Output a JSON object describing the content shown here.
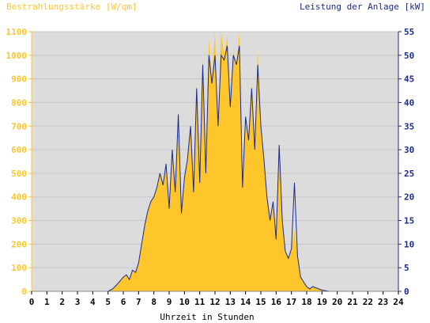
{
  "chart_data": {
    "type": "area",
    "left_title": "Bestrahlungsstärke [W/qm]",
    "right_title": "Leistung der Anlage [kW]",
    "xlabel": "Uhrzeit in Stunden",
    "xlim": [
      0,
      24
    ],
    "xticks": [
      "0",
      "1",
      "2",
      "3",
      "4",
      "5",
      "6",
      "7",
      "8",
      "9",
      "10",
      "11",
      "12",
      "13",
      "14",
      "15",
      "16",
      "17",
      "18",
      "19",
      "20",
      "21",
      "22",
      "23",
      "24"
    ],
    "ylim_left": [
      0,
      1100
    ],
    "yticks_left": [
      "0",
      "100",
      "200",
      "300",
      "400",
      "500",
      "600",
      "700",
      "800",
      "900",
      "1000",
      "1100"
    ],
    "ylim_right": [
      0,
      55
    ],
    "yticks_right": [
      "0",
      "5",
      "10",
      "15",
      "20",
      "25",
      "30",
      "35",
      "40",
      "45",
      "50",
      "55"
    ],
    "colors": {
      "irradiance": "#ffc62c",
      "power": "#1c2a8c",
      "plot_background": "#dcdcdc",
      "left_axis_text": "#ffc62c",
      "right_axis_text": "#1c2a8c"
    },
    "series": [
      {
        "name": "Bestrahlungsstärke [W/qm]",
        "axis": "left",
        "x": [
          0,
          5,
          5.3,
          5.6,
          6,
          6.2,
          6.4,
          6.6,
          6.8,
          7,
          7.2,
          7.4,
          7.6,
          7.8,
          8,
          8.2,
          8.4,
          8.6,
          8.8,
          9,
          9.2,
          9.4,
          9.6,
          9.8,
          10,
          10.2,
          10.4,
          10.6,
          10.8,
          11,
          11.2,
          11.4,
          11.6,
          11.8,
          12,
          12.2,
          12.4,
          12.6,
          12.8,
          13,
          13.2,
          13.4,
          13.6,
          13.8,
          14,
          14.2,
          14.4,
          14.6,
          14.8,
          15,
          15.2,
          15.4,
          15.6,
          15.8,
          16,
          16.2,
          16.4,
          16.6,
          16.8,
          17,
          17.2,
          17.4,
          17.6,
          17.8,
          18,
          18.2,
          18.4,
          18.6,
          18.8,
          19,
          19.5,
          20,
          20.2,
          20.5,
          24
        ],
        "y": [
          0,
          0,
          10,
          30,
          60,
          70,
          50,
          90,
          80,
          120,
          200,
          280,
          340,
          380,
          400,
          440,
          500,
          450,
          540,
          350,
          600,
          420,
          700,
          330,
          480,
          560,
          700,
          420,
          880,
          460,
          980,
          500,
          1070,
          900,
          1100,
          700,
          1100,
          1000,
          1080,
          780,
          1020,
          960,
          1100,
          450,
          740,
          650,
          880,
          600,
          1020,
          700,
          560,
          400,
          300,
          380,
          220,
          620,
          300,
          170,
          140,
          180,
          260,
          150,
          60,
          40,
          20,
          10,
          20,
          15,
          10,
          5,
          0,
          0,
          0,
          0,
          0
        ]
      },
      {
        "name": "Leistung der Anlage [kW]",
        "axis": "right",
        "x": [
          0,
          5,
          5.3,
          5.6,
          6,
          6.2,
          6.4,
          6.6,
          6.8,
          7,
          7.2,
          7.4,
          7.6,
          7.8,
          8,
          8.2,
          8.4,
          8.6,
          8.8,
          9,
          9.2,
          9.4,
          9.6,
          9.8,
          10,
          10.2,
          10.4,
          10.6,
          10.8,
          11,
          11.2,
          11.4,
          11.6,
          11.8,
          12,
          12.2,
          12.4,
          12.6,
          12.8,
          13,
          13.2,
          13.4,
          13.6,
          13.8,
          14,
          14.2,
          14.4,
          14.6,
          14.8,
          15,
          15.2,
          15.4,
          15.6,
          15.8,
          16,
          16.2,
          16.4,
          16.6,
          16.8,
          17,
          17.2,
          17.4,
          17.6,
          17.8,
          18,
          18.2,
          18.4,
          18.6,
          18.8,
          19,
          19.5,
          20,
          20.2,
          20.5,
          24
        ],
        "y": [
          0,
          0,
          0.5,
          1.5,
          3,
          3.5,
          2.5,
          4.5,
          4,
          6,
          10,
          14,
          17,
          19,
          20,
          22,
          25,
          22.5,
          27,
          17.5,
          30,
          21,
          37.5,
          16.5,
          24,
          28,
          35,
          21,
          43,
          23,
          48,
          25,
          50,
          44,
          50,
          35,
          50,
          49,
          52,
          39,
          50,
          48,
          52,
          22,
          37,
          32,
          43,
          30,
          48,
          35,
          28,
          20,
          15,
          19,
          11,
          31,
          15,
          8.5,
          7,
          9,
          23,
          7.5,
          3,
          2,
          1,
          0.5,
          1,
          0.75,
          0.5,
          0.25,
          0,
          0,
          0,
          0,
          0
        ]
      }
    ]
  }
}
